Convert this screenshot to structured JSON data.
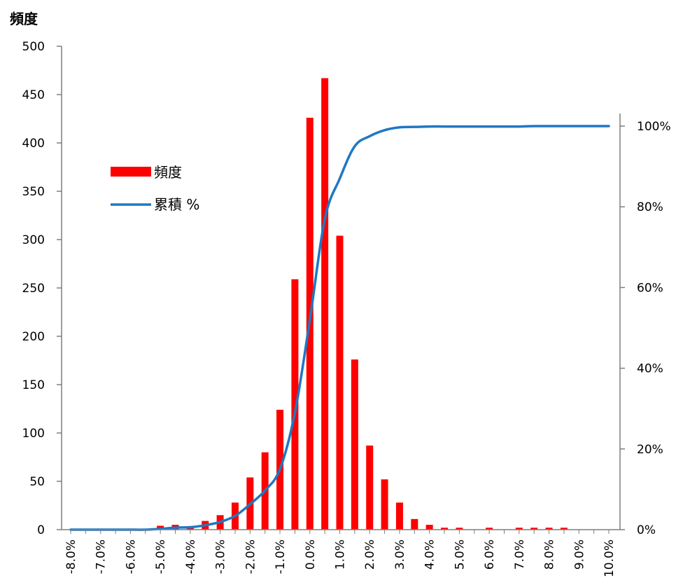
{
  "chart_data": {
    "type": "bar",
    "title": "",
    "ylabel": "頻度",
    "ylim": [
      0,
      500
    ],
    "y_ticks": [
      "0",
      "50",
      "100",
      "150",
      "200",
      "250",
      "300",
      "350",
      "400",
      "450",
      "500"
    ],
    "y2lim": [
      0,
      1.2
    ],
    "y2_ticks": [
      "0%",
      "20%",
      "40%",
      "60%",
      "80%",
      "100%"
    ],
    "x_ticks": [
      "-8.0%",
      "-7.0%",
      "-6.0%",
      "-5.0%",
      "-4.0%",
      "-3.0%",
      "-2.0%",
      "-1.0%",
      "0.0%",
      "1.0%",
      "2.0%",
      "3.0%",
      "4.0%",
      "5.0%",
      "6.0%",
      "7.0%",
      "8.0%",
      "9.0%",
      "10.0%"
    ],
    "x": [
      -8.0,
      -7.5,
      -7.0,
      -6.5,
      -6.0,
      -5.5,
      -5.0,
      -4.5,
      -4.0,
      -3.5,
      -3.0,
      -2.5,
      -2.0,
      -1.5,
      -1.0,
      -0.5,
      0.0,
      0.5,
      1.0,
      1.5,
      2.0,
      2.5,
      3.0,
      3.5,
      4.0,
      4.5,
      5.0,
      5.5,
      6.0,
      6.5,
      7.0,
      7.5,
      8.0,
      8.5,
      9.0,
      9.5,
      10.0
    ],
    "legend_position": "left",
    "grid": false,
    "colors": {
      "bar": "#ff0000",
      "line": "#1f77c4"
    },
    "series": [
      {
        "name": "頻度",
        "type": "bar",
        "axis": "left",
        "values": [
          0,
          0,
          0,
          0,
          0,
          0,
          4,
          5,
          2,
          9,
          15,
          28,
          54,
          80,
          124,
          259,
          426,
          467,
          304,
          176,
          87,
          52,
          28,
          11,
          5,
          2,
          2,
          0,
          2,
          0,
          2,
          2,
          2,
          2,
          0,
          0,
          0
        ]
      },
      {
        "name": "累積 %",
        "type": "line",
        "axis": "right",
        "values": [
          0,
          0,
          0,
          0,
          0,
          0,
          0.002,
          0.005,
          0.006,
          0.011,
          0.019,
          0.034,
          0.063,
          0.097,
          0.15,
          0.29,
          0.52,
          0.77,
          0.87,
          0.95,
          0.975,
          0.99,
          0.997,
          0.998,
          0.999,
          0.999,
          0.999,
          0.999,
          0.999,
          0.999,
          0.999,
          1.0,
          1.0,
          1.0,
          1.0,
          1.0,
          1.0
        ]
      }
    ]
  }
}
